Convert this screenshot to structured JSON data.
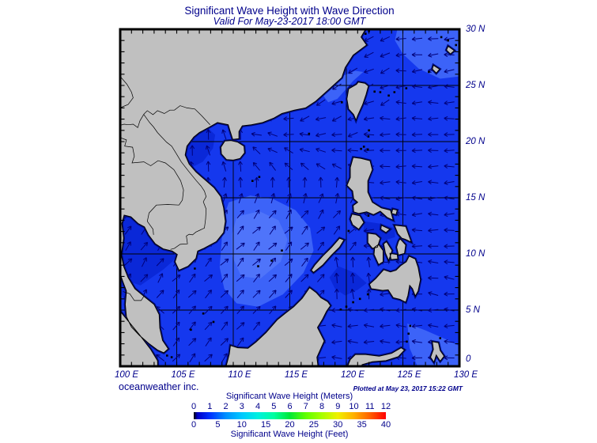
{
  "header": {
    "title": "Significant Wave Height with Wave Direction",
    "subtitle": "Valid For May-23-2017 18:00 GMT"
  },
  "axes": {
    "lat_labels": [
      "30 N",
      "25 N",
      "20 N",
      "15 N",
      "10 N",
      "5 N",
      "0"
    ],
    "lon_labels": [
      "100 E",
      "105 E",
      "110 E",
      "115 E",
      "120 E",
      "125 E",
      "130 E"
    ]
  },
  "footer": {
    "credit": "oceanweather inc.",
    "plotted": "Plotted at May 23, 2017 15:22 GMT"
  },
  "legend": {
    "meters_label": "Significant Wave Height (Meters)",
    "meters_ticks": [
      "0",
      "1",
      "2",
      "3",
      "4",
      "5",
      "6",
      "7",
      "8",
      "9",
      "10",
      "11",
      "12"
    ],
    "feet_label": "Significant Wave Height (Feet)",
    "feet_ticks": [
      "0",
      "5",
      "10",
      "15",
      "20",
      "25",
      "30",
      "35",
      "40"
    ],
    "gradient_stops": [
      [
        0,
        "#000000"
      ],
      [
        0.02,
        "#0000c8"
      ],
      [
        0.083,
        "#0030ff"
      ],
      [
        0.167,
        "#0090ff"
      ],
      [
        0.25,
        "#00c8ff"
      ],
      [
        0.333,
        "#00f0e0"
      ],
      [
        0.417,
        "#00ffa0"
      ],
      [
        0.5,
        "#00e838"
      ],
      [
        0.583,
        "#60ff00"
      ],
      [
        0.667,
        "#a8ff00"
      ],
      [
        0.75,
        "#f0f000"
      ],
      [
        0.833,
        "#ffb000"
      ],
      [
        0.917,
        "#ff6000"
      ],
      [
        1,
        "#ff0000"
      ]
    ]
  },
  "map_colors": {
    "land": "#c0c0c0",
    "ocean": "#1538ee",
    "ocean_light": "#3c63f8",
    "ocean_lighter": "#4f74fa",
    "ocean_dark": "#0a28d8",
    "coast_halo": "#000d82",
    "arrow": "#000078",
    "grid": "#000000",
    "text": "#00008b"
  }
}
